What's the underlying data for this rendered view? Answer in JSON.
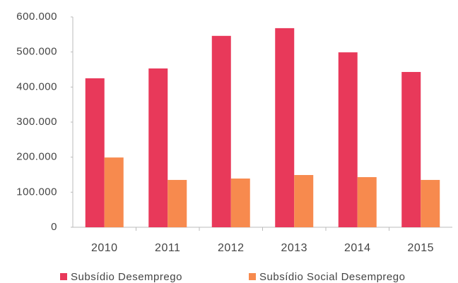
{
  "chart_data": {
    "type": "bar",
    "categories": [
      "2010",
      "2011",
      "2012",
      "2013",
      "2014",
      "2015"
    ],
    "series": [
      {
        "name": "Subsídio Desemprego",
        "color": "#e8395a",
        "values": [
          425000,
          453000,
          546000,
          568000,
          499000,
          443000
        ]
      },
      {
        "name": "Subsídio Social Desemprego",
        "color": "#f78a4e",
        "values": [
          199000,
          135000,
          139000,
          149000,
          143000,
          135000
        ]
      }
    ],
    "ylim": [
      0,
      600000
    ],
    "yticks": [
      0,
      {
        "value": 100000,
        "label": "100.000"
      },
      {
        "value": 200000,
        "label": "200.000"
      },
      {
        "value": 300000,
        "label": "300.000"
      },
      {
        "value": 400000,
        "label": "400.000"
      },
      {
        "value": 500000,
        "label": "500.000"
      },
      {
        "value": 600000,
        "label": "600.000"
      }
    ],
    "grid": false,
    "legend": "bottom"
  }
}
